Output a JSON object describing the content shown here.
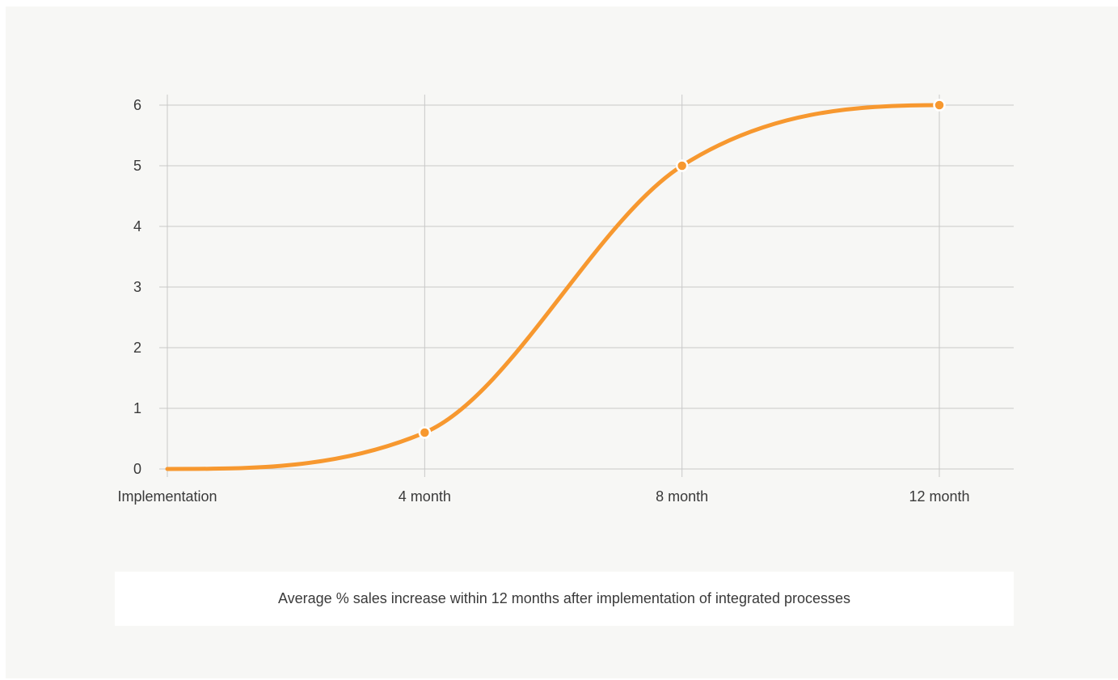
{
  "chart_data": {
    "type": "line",
    "title": "",
    "caption": "Average % sales increase within 12 months after implementation of integrated processes",
    "xlabel": "",
    "ylabel": "",
    "categories": [
      "Implementation",
      "4 month",
      "8 month",
      "12 month"
    ],
    "x": [
      0,
      4,
      8,
      12
    ],
    "series": [
      {
        "color": "#f7982f",
        "smooth": true,
        "values": [
          0,
          0.6,
          5,
          6
        ],
        "markers_on": [
          1,
          2,
          3
        ]
      }
    ],
    "yticks": [
      0,
      1,
      2,
      3,
      4,
      5,
      6
    ],
    "ylim": [
      0,
      6
    ],
    "xlim": [
      0,
      12
    ],
    "grid": true,
    "legend": "none",
    "colors": {
      "line": "#f7982f",
      "grid": "#c8c8c8",
      "text": "#3a3a3a",
      "background": "#f7f7f5",
      "caption_background": "#ffffff"
    }
  }
}
